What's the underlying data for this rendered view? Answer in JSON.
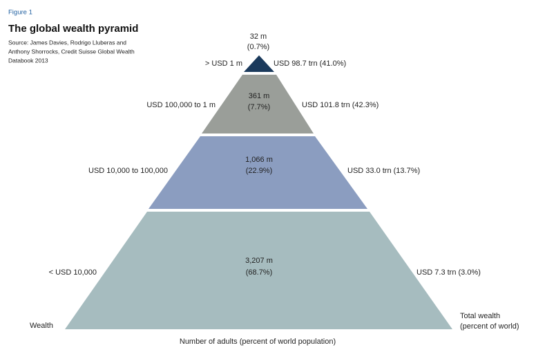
{
  "figure_label": "Figure 1",
  "title": "The global wealth pyramid",
  "source": [
    "Source: James Davies, Rodrigo Lluberas and",
    "Anthony Shorrocks, Credit Suisse Global Wealth",
    "Databook 2013"
  ],
  "tiers": [
    {
      "wealth_range": "> USD 1 m",
      "adults": "32 m",
      "adults_share": "(0.7%)",
      "total_wealth": "USD 98.7 trn (41.0%)"
    },
    {
      "wealth_range": "USD 100,000 to 1 m",
      "adults": "361 m",
      "adults_share": "(7.7%)",
      "total_wealth": "USD 101.8 trn (42.3%)"
    },
    {
      "wealth_range": "USD 10,000 to 100,000",
      "adults": "1,066 m",
      "adults_share": "(22.9%)",
      "total_wealth": "USD 33.0 trn (13.7%)"
    },
    {
      "wealth_range": "< USD 10,000",
      "adults": "3,207 m",
      "adults_share": "(68.7%)",
      "total_wealth": "USD 7.3 trn (3.0%)"
    }
  ],
  "left_axis_label": "Wealth",
  "right_axis_label": [
    "Total wealth",
    "(percent of world)"
  ],
  "bottom_axis_label": "Number of adults (percent of world population)"
}
